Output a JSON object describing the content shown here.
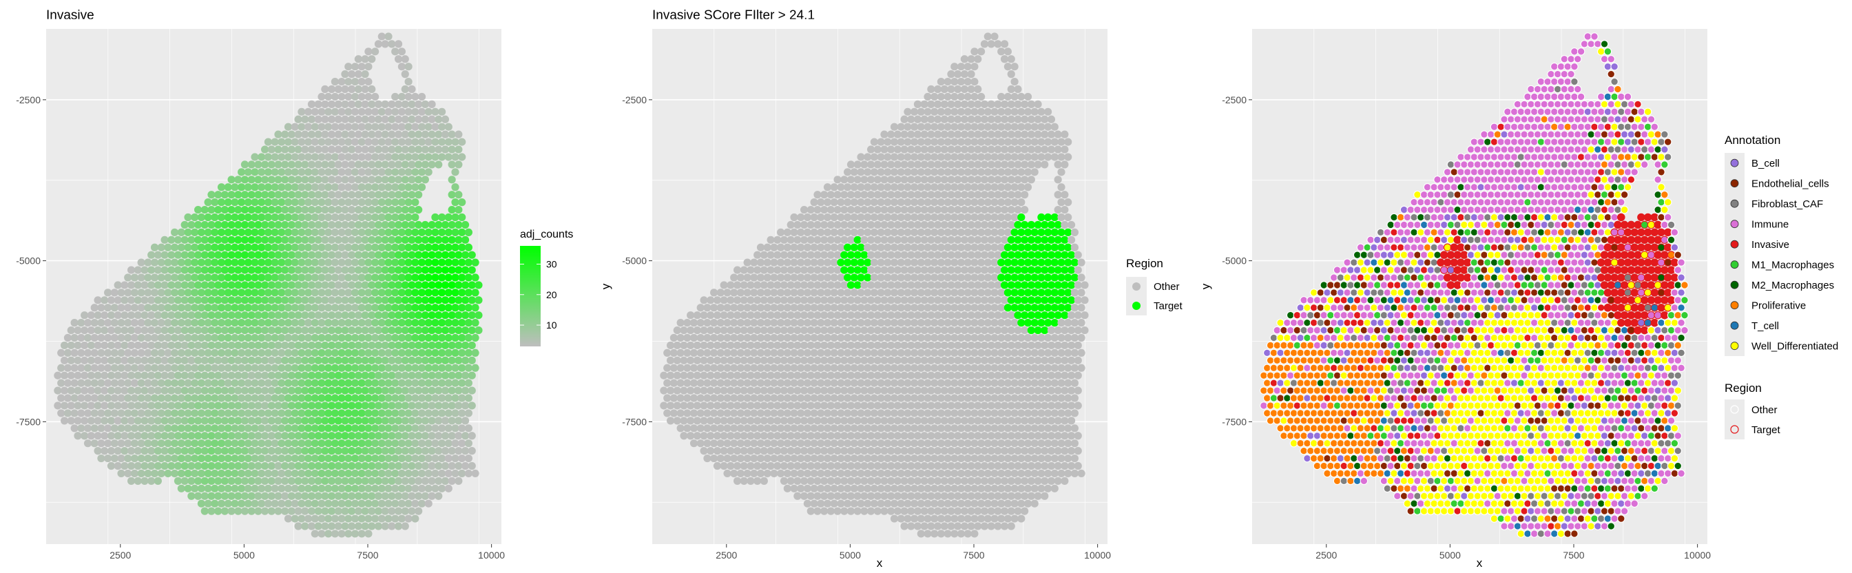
{
  "colors": {
    "panel_bg": "#EBEBEB",
    "grid": "#FFFFFF",
    "spot_grey": "#BEBEBE",
    "target_green": "#00FF00",
    "gradient_low": "#BEBEBE",
    "gradient_high": "#00FF00"
  },
  "chart_data": [
    {
      "type": "scatter",
      "title": "Invasive",
      "xlabel": "",
      "ylabel": "",
      "xlim": [
        1000,
        10200
      ],
      "ylim": [
        -9400,
        -1400
      ],
      "x_ticks": [
        "2500",
        "5000",
        "7500",
        "10000"
      ],
      "y_ticks": [
        "-2500",
        "-5000",
        "-7500"
      ],
      "grid": true,
      "legend": {
        "title": "adj_counts",
        "type": "colorbar",
        "range": [
          3,
          36
        ],
        "low_color": "#BEBEBE",
        "high_color": "#00FF00",
        "labels": [
          "10",
          "20",
          "30"
        ],
        "values": [
          10,
          20,
          30
        ]
      },
      "hotspots": [
        {
          "x": 5000,
          "y": -4900,
          "value": 28
        },
        {
          "x": 9000,
          "y": -5300,
          "value": 36
        },
        {
          "x": 7000,
          "y": -7300,
          "value": 22
        },
        {
          "x": 4400,
          "y": -8000,
          "value": 14
        }
      ]
    },
    {
      "type": "scatter",
      "title": "Invasive SCore FIlter > 24.1",
      "xlabel": "x",
      "ylabel": "y",
      "xlim": [
        1000,
        10200
      ],
      "ylim": [
        -9400,
        -1400
      ],
      "x_ticks": [
        "2500",
        "5000",
        "7500",
        "10000"
      ],
      "y_ticks": [
        "-2500",
        "-5000",
        "-7500"
      ],
      "grid": true,
      "legend": {
        "title": "Region",
        "position": "right",
        "entries": [
          {
            "label": "Other",
            "color": "#BEBEBE"
          },
          {
            "label": "Target",
            "color": "#00FF00"
          }
        ]
      },
      "target_regions": [
        {
          "x_range": [
            4800,
            5400
          ],
          "y_range": [
            -5400,
            -4700
          ]
        },
        {
          "x_range": [
            8000,
            9600
          ],
          "y_range": [
            -6100,
            -4200
          ]
        }
      ]
    },
    {
      "type": "scatter",
      "title": "",
      "xlabel": "x",
      "ylabel": "y",
      "xlim": [
        1000,
        10200
      ],
      "ylim": [
        -9400,
        -1400
      ],
      "x_ticks": [
        "2500",
        "5000",
        "7500",
        "10000"
      ],
      "y_ticks": [
        "-2500",
        "-5000",
        "-7500"
      ],
      "grid": true,
      "legend": {
        "annotation_title": "Annotation",
        "annotation_entries": [
          {
            "label": "B_cell",
            "color": "#9370DB"
          },
          {
            "label": "Endothelial_cells",
            "color": "#8B2500"
          },
          {
            "label": "Fibroblast_CAF",
            "color": "#808080"
          },
          {
            "label": "Immune",
            "color": "#DA70D6"
          },
          {
            "label": "Invasive",
            "color": "#E31A1C"
          },
          {
            "label": "M1_Macrophages",
            "color": "#32CD32"
          },
          {
            "label": "M2_Macrophages",
            "color": "#006400"
          },
          {
            "label": "Proliferative",
            "color": "#FF7F00"
          },
          {
            "label": "T_cell",
            "color": "#1F78B4"
          },
          {
            "label": "Well_Differentiated",
            "color": "#FFFF00"
          }
        ],
        "region_title": "Region",
        "region_entries": [
          {
            "label": "Other",
            "stroke": "#FFFFFF"
          },
          {
            "label": "Target",
            "stroke": "#E31A1C"
          }
        ]
      }
    }
  ]
}
